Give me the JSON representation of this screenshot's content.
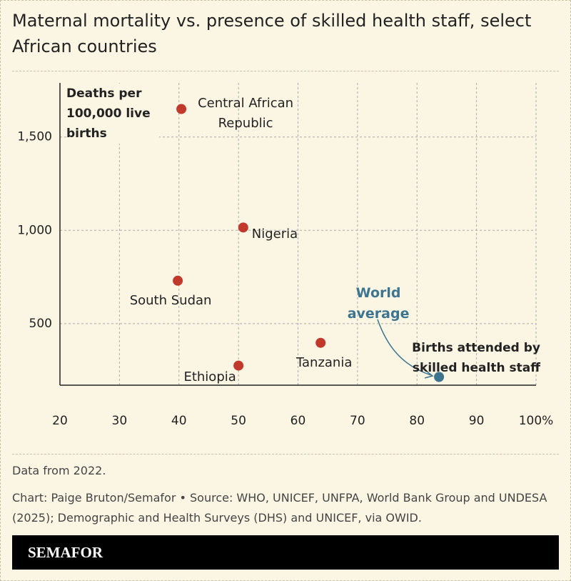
{
  "chart_data": {
    "type": "scatter",
    "title": "Maternal mortality vs. presence of skilled health staff, select African countries",
    "y_label": "Deaths per 100,000 live births",
    "x_label": "Births attended by skilled health staff",
    "labels": [
      "Central African Republic",
      "Nigeria",
      "South Sudan",
      "Tanzania",
      "Ethiopia",
      "World average"
    ],
    "x": [
      40.4,
      50.8,
      39.8,
      63.8,
      50.0,
      83.7
    ],
    "values": [
      1650,
      1015,
      730,
      397,
      275,
      214
    ],
    "colors": [
      "#c0392b",
      "#c0392b",
      "#c0392b",
      "#c0392b",
      "#c0392b",
      "#3d7490"
    ],
    "xlim": [
      20,
      100
    ],
    "ylim": [
      170,
      1790
    ],
    "xticks": [
      20,
      30,
      40,
      50,
      60,
      70,
      80,
      90,
      {
        "value": 100,
        "label": "100%"
      }
    ],
    "yticks": [
      500,
      {
        "value": 1000,
        "label": "1,000"
      },
      {
        "value": 1500,
        "label": "1,500"
      }
    ],
    "grid": true,
    "note": "Data from 2022.",
    "source": "Chart: Paige Bruton/Semafor • Source: WHO, UNICEF, UNFPA, World Bank Group and UNDESA (2025); Demographic and Health Surveys (DHS) and UNICEF, via OWID.",
    "brand": "SEMAFOR"
  }
}
